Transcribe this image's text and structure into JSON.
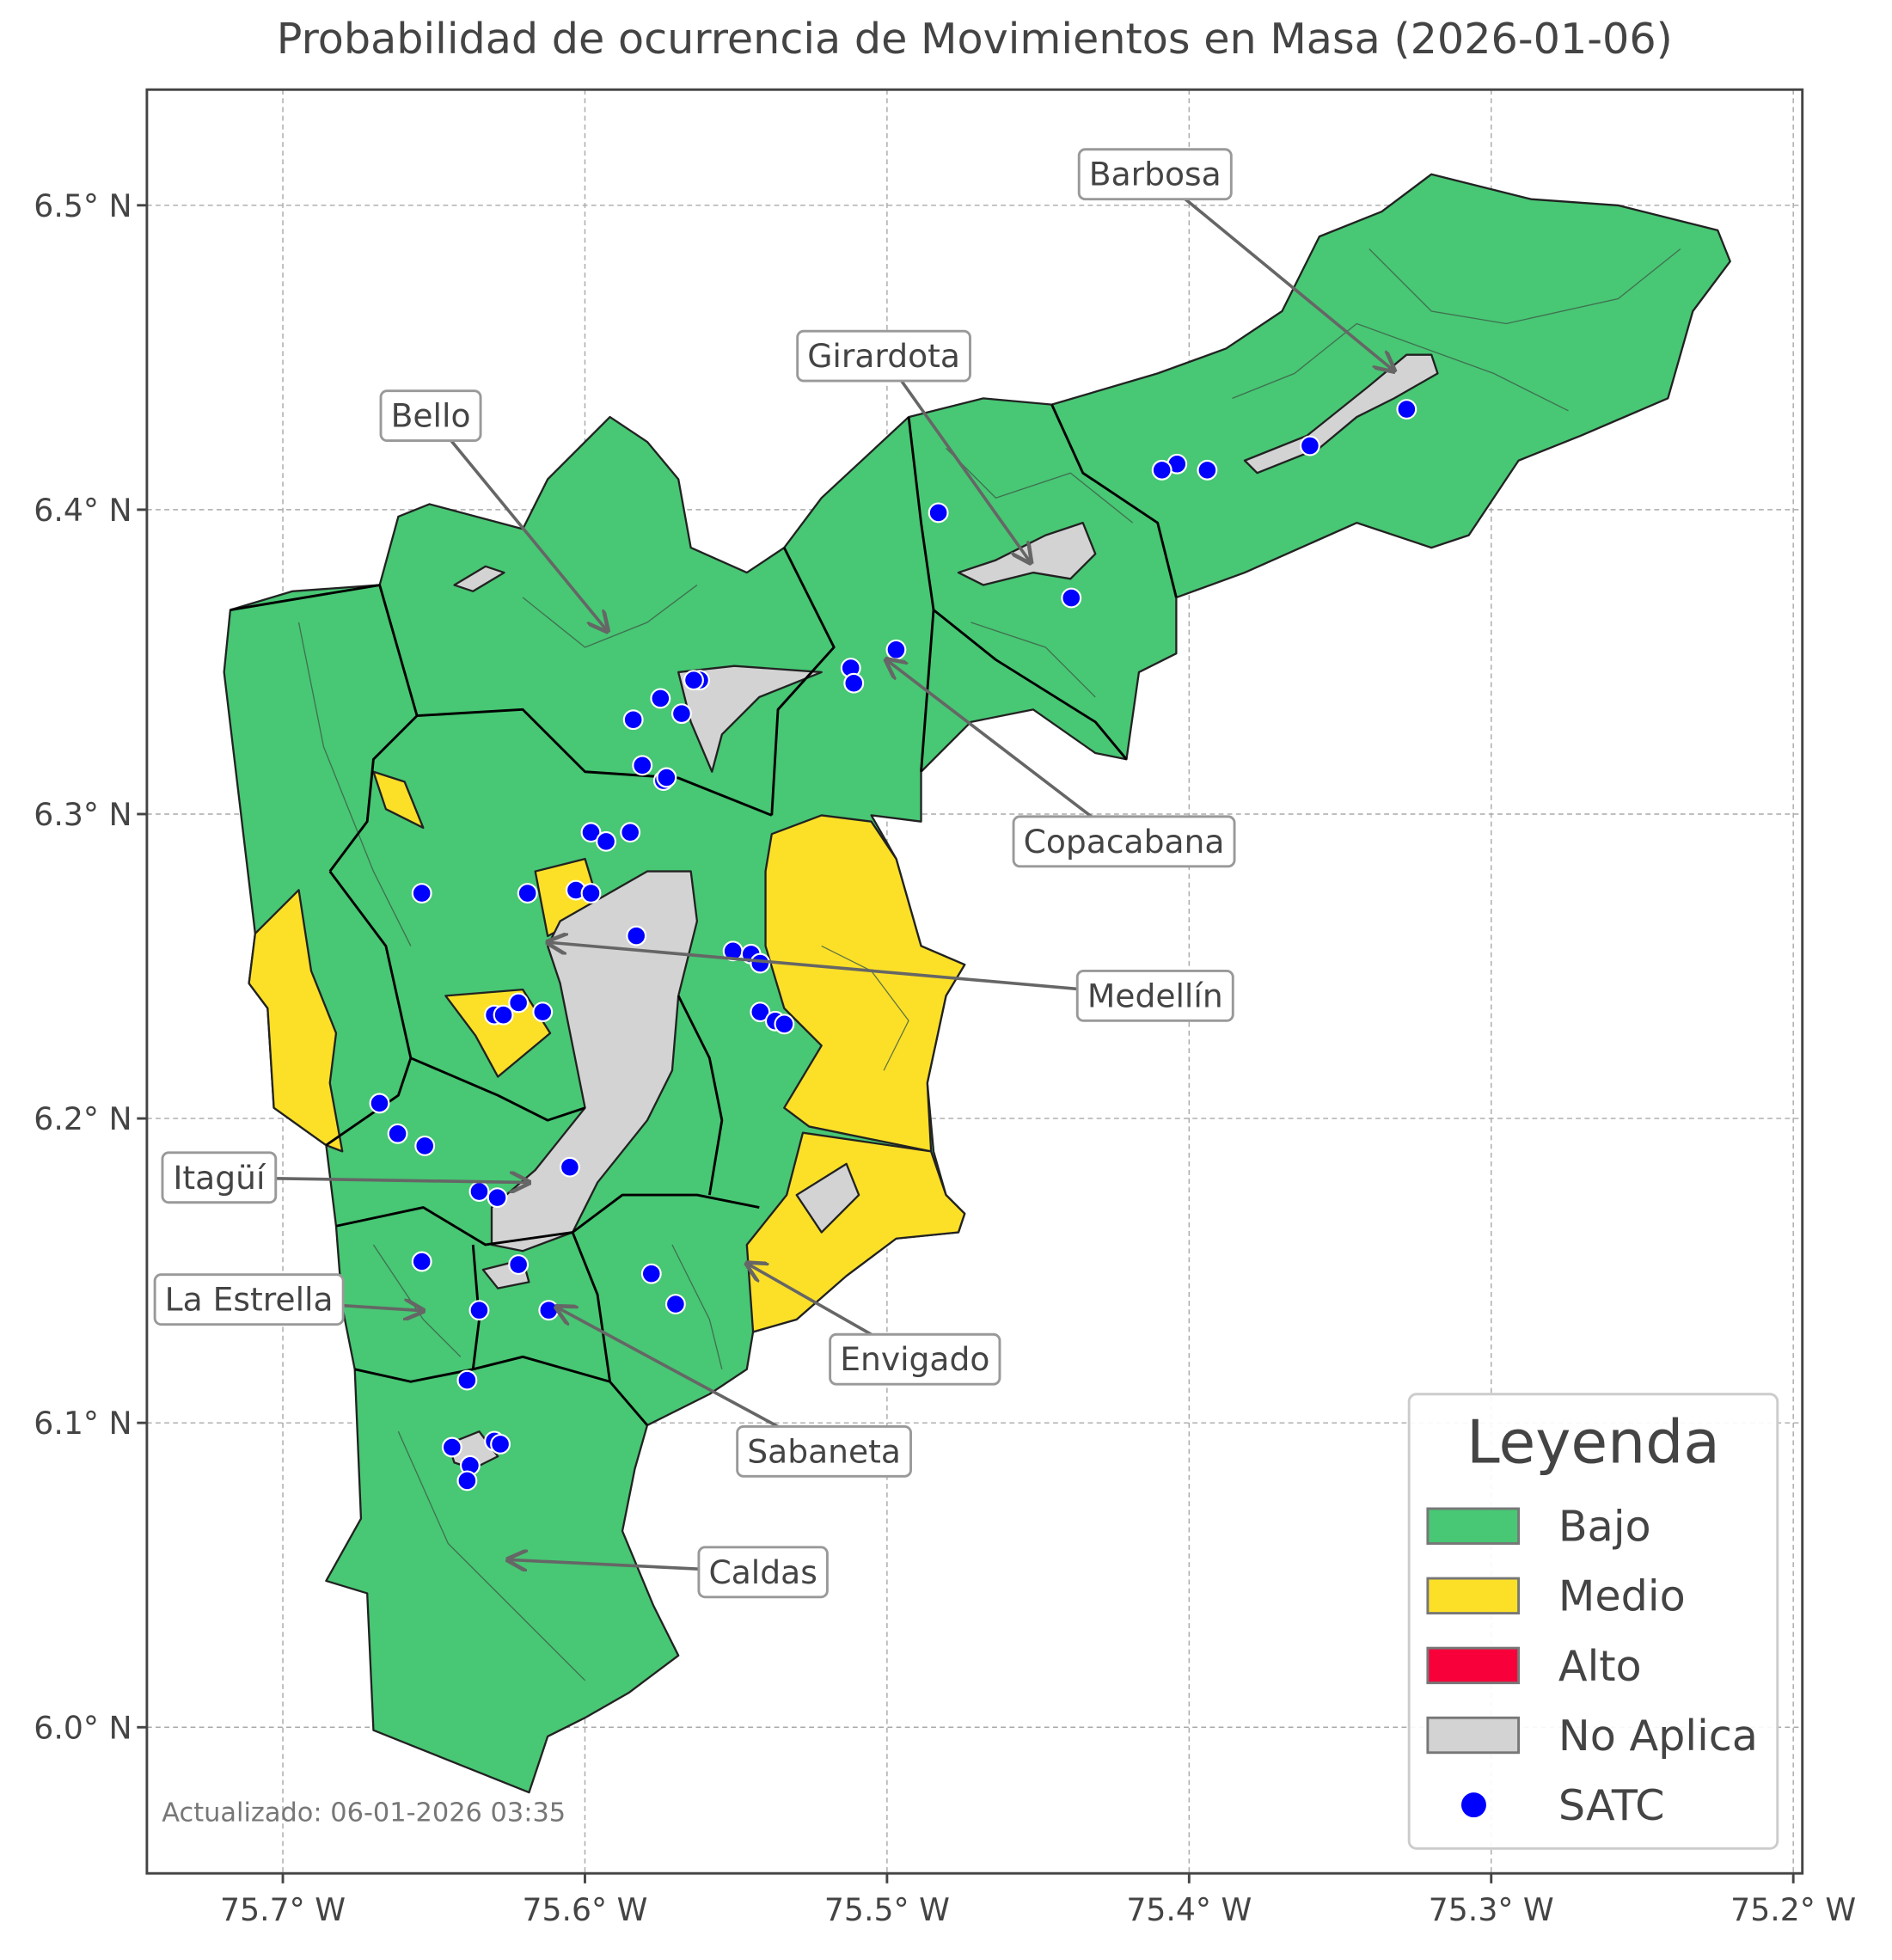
{
  "title": "Probabilidad de ocurrencia de Movimientos en Masa (2026-01-06)",
  "map": {
    "xlim": [
      -75.745,
      -75.197
    ],
    "ylim": [
      5.952,
      6.538
    ],
    "grid": true,
    "xticks": [
      {
        "value": -75.7,
        "label": "75.7° W"
      },
      {
        "value": -75.6,
        "label": "75.6° W"
      },
      {
        "value": -75.5,
        "label": "75.5° W"
      },
      {
        "value": -75.4,
        "label": "75.4° W"
      },
      {
        "value": -75.3,
        "label": "75.3° W"
      },
      {
        "value": -75.2,
        "label": "75.2° W"
      }
    ],
    "yticks": [
      {
        "value": 6.0,
        "label": "6.0° N"
      },
      {
        "value": 6.1,
        "label": "6.1° N"
      },
      {
        "value": 6.2,
        "label": "6.2° N"
      },
      {
        "value": 6.3,
        "label": "6.3° N"
      },
      {
        "value": 6.4,
        "label": "6.4° N"
      },
      {
        "value": 6.5,
        "label": "6.5° N"
      }
    ]
  },
  "annotations": [
    "Barbosa",
    "Girardota",
    "Bello",
    "Copacabana",
    "Medellín",
    "Itagüí",
    "La Estrella",
    "Envigado",
    "Sabaneta",
    "Caldas"
  ],
  "legend": {
    "title": "Leyenda",
    "items": [
      {
        "label": "Bajo",
        "color": "#48c774"
      },
      {
        "label": "Medio",
        "color": "#fce028"
      },
      {
        "label": "Alto",
        "color": "#f8003a"
      },
      {
        "label": "No Aplica",
        "color": "#d3d3d3"
      },
      {
        "label": "SATC",
        "color": "#0000ff",
        "marker": "circle"
      }
    ]
  },
  "satc_points": {
    "lon": [
      -75.328,
      -75.36,
      -75.394,
      -75.404,
      -75.409,
      -75.483,
      -75.439,
      -75.497,
      -75.512,
      -75.511,
      -75.562,
      -75.564,
      -75.575,
      -75.584,
      -75.568,
      -75.581,
      -75.574,
      -75.573,
      -75.598,
      -75.585,
      -75.593,
      -75.654,
      -75.619,
      -75.603,
      -75.598,
      -75.583,
      -75.551,
      -75.545,
      -75.542,
      -75.542,
      -75.537,
      -75.534,
      -75.668,
      -75.662,
      -75.653,
      -75.622,
      -75.63,
      -75.627,
      -75.614,
      -75.605,
      -75.635,
      -75.629,
      -75.622,
      -75.654,
      -75.578,
      -75.57,
      -75.635,
      -75.612,
      -75.639,
      -75.644,
      -75.63,
      -75.628,
      -75.638,
      -75.639
    ],
    "lat": [
      6.433,
      6.421,
      6.413,
      6.415,
      6.413,
      6.399,
      6.371,
      6.354,
      6.348,
      6.343,
      6.344,
      6.344,
      6.338,
      6.331,
      6.333,
      6.316,
      6.311,
      6.312,
      6.294,
      6.294,
      6.291,
      6.274,
      6.274,
      6.275,
      6.274,
      6.26,
      6.255,
      6.254,
      6.251,
      6.235,
      6.232,
      6.231,
      6.205,
      6.195,
      6.191,
      6.238,
      6.234,
      6.234,
      6.235,
      6.184,
      6.176,
      6.174,
      6.152,
      6.153,
      6.149,
      6.139,
      6.137,
      6.137,
      6.114,
      6.092,
      6.094,
      6.093,
      6.086,
      6.081
    ]
  },
  "footer": "Actualizado: 06-01-2026 03:35"
}
